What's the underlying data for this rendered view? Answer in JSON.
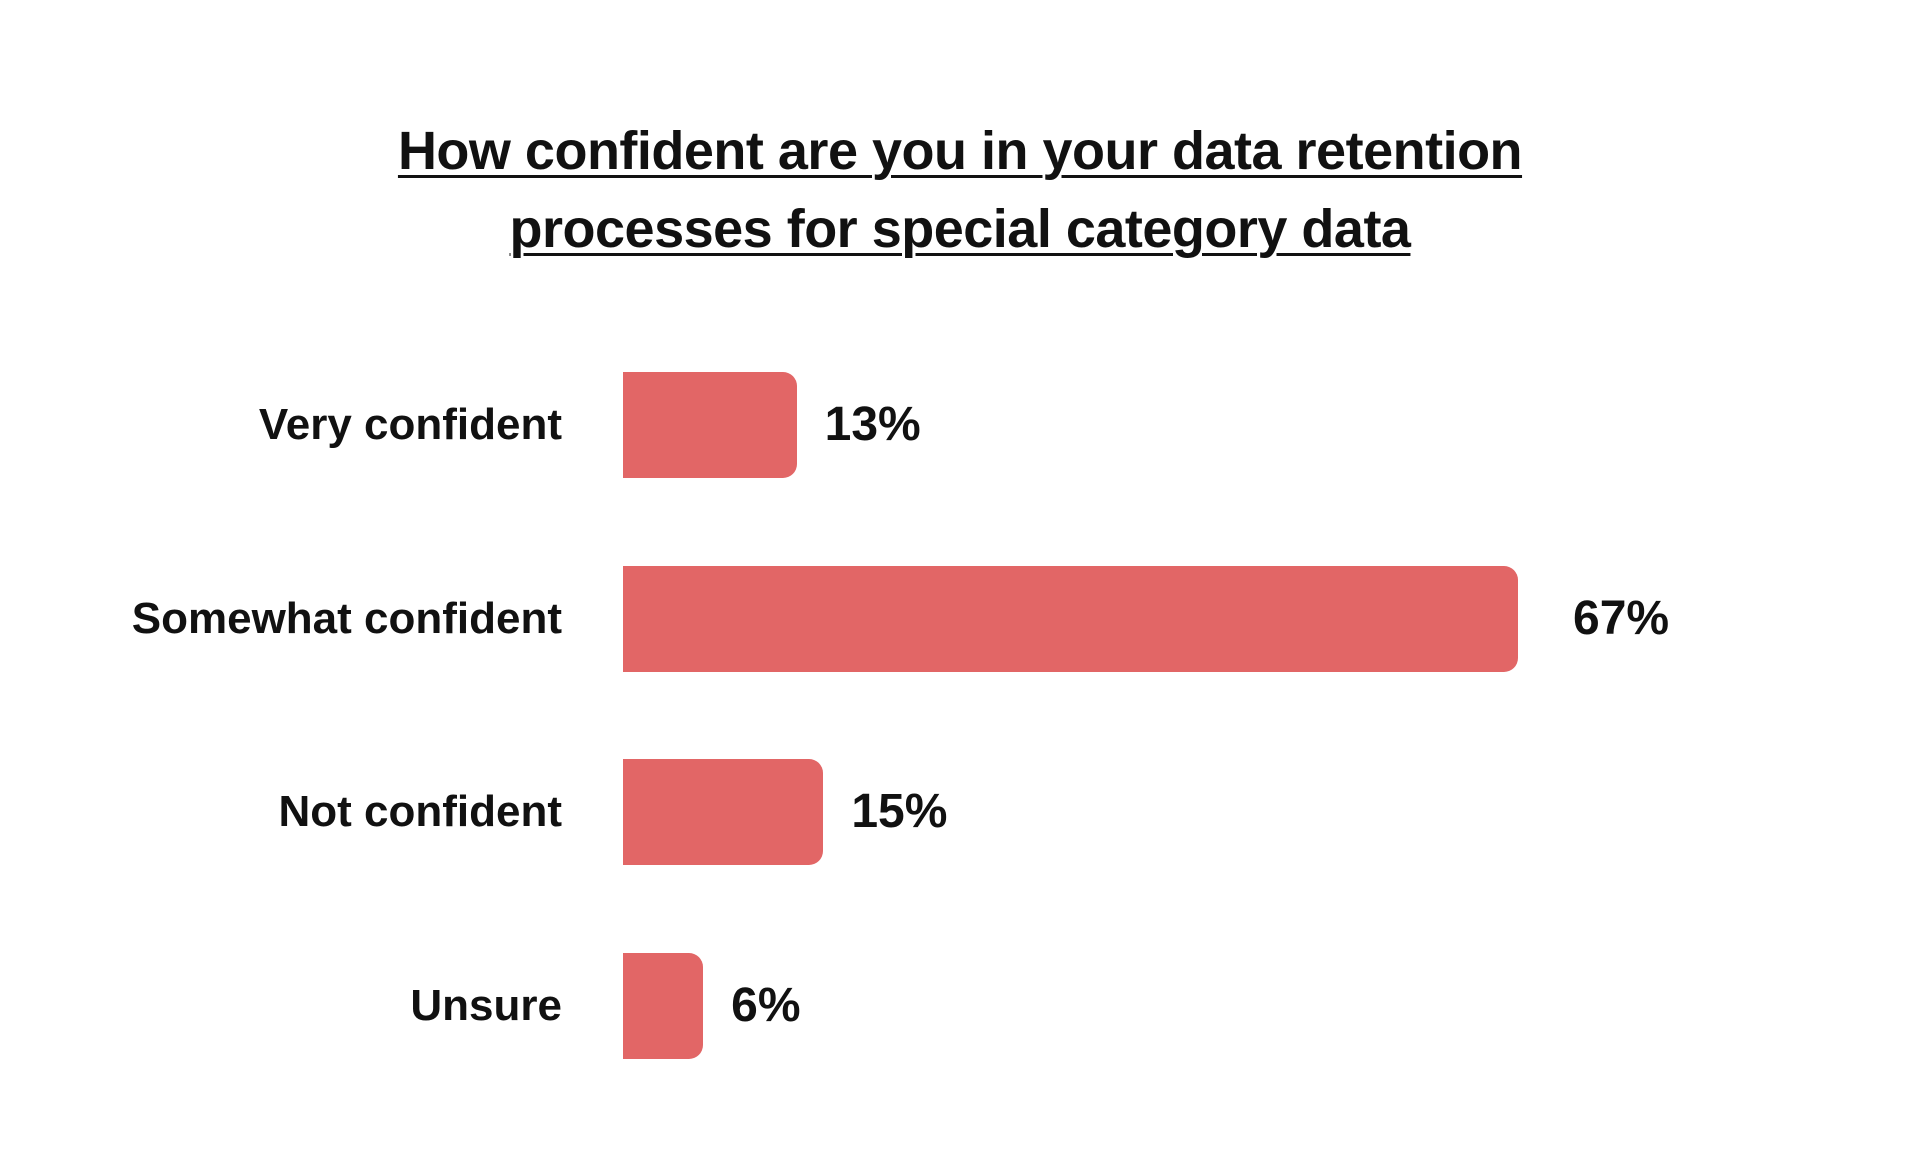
{
  "chart_data": {
    "type": "bar",
    "orientation": "horizontal",
    "title_lines": [
      "How confident are you in your data retention",
      "processes for special category data"
    ],
    "categories": [
      "Very confident",
      "Somewhat confident",
      "Not confident",
      "Unsure"
    ],
    "values": [
      13,
      67,
      15,
      6
    ],
    "value_labels": [
      "13%",
      "67%",
      "15%",
      "6%"
    ],
    "unit": "%",
    "xlim": [
      0,
      100
    ],
    "grid": false,
    "legend": "none",
    "colors": {
      "bar": "#e26666",
      "text": "#111111",
      "background": "#ffffff"
    }
  }
}
